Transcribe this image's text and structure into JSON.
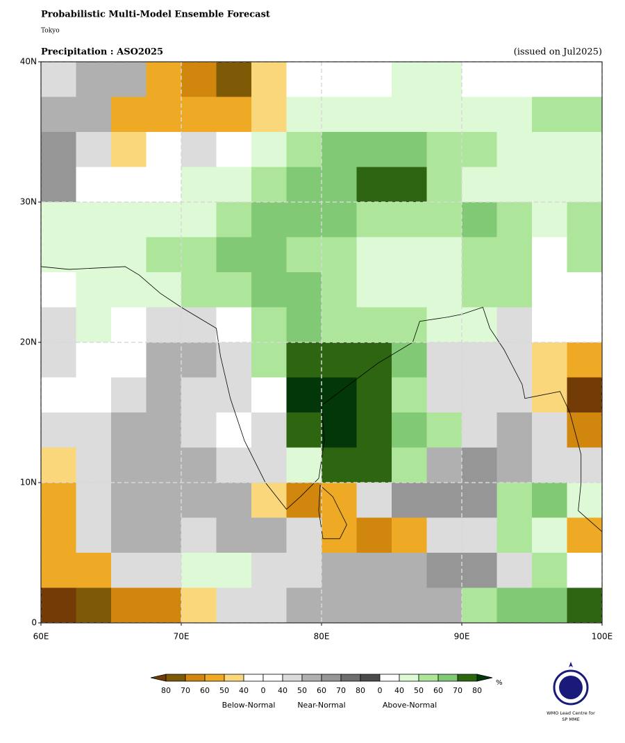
{
  "title": "Probabilistic Multi-Model Ensemble Forecast",
  "subtitle": "Tokyo",
  "logo": [
    "WMO Lead Centre for",
    "SP MME"
  ],
  "map": {
    "variable": "Precipitation : ASO2025",
    "issued": "(issued on Jul2025)",
    "xlim": [
      60,
      100
    ],
    "ylim": [
      0,
      40
    ],
    "xticks": [
      {
        "value": 60,
        "label": "60E"
      },
      {
        "value": 70,
        "label": "70E"
      },
      {
        "value": 80,
        "label": "80E"
      },
      {
        "value": 90,
        "label": "90E"
      },
      {
        "value": 100,
        "label": "100E"
      }
    ],
    "yticks": [
      0,
      {
        "value": 10,
        "label": "10N"
      },
      {
        "value": 20,
        "label": "20N"
      },
      {
        "value": 30,
        "label": "30N"
      },
      {
        "value": 40,
        "label": "40N"
      }
    ],
    "grid": true,
    "cells": [
      [
        "#dcdcdc",
        "#b0b0b0",
        "#b0b0b0",
        "#eeaa25",
        "#d1870d",
        "#7f5a06",
        "#fad77a",
        "#ffffff",
        "#ffffff",
        "#ffffff",
        "#ddf9d5",
        "#ddf9d5",
        "#ffffff",
        "#ffffff",
        "#ffffff",
        "#ffffff"
      ],
      [
        "#b0b0b0",
        "#b0b0b0",
        "#eeaa25",
        "#eeaa25",
        "#eeaa25",
        "#eeaa25",
        "#fad77a",
        "#ddf9d5",
        "#ddf9d5",
        "#ddf9d5",
        "#ddf9d5",
        "#ddf9d5",
        "#ddf9d5",
        "#ddf9d5",
        "#ade69a",
        "#ade69a"
      ],
      [
        "#969696",
        "#dcdcdc",
        "#fad77a",
        "#ffffff",
        "#dcdcdc",
        "#ffffff",
        "#ddf9d5",
        "#ade69a",
        "#82c975",
        "#82c975",
        "#82c975",
        "#ade69a",
        "#ade69a",
        "#ddf9d5",
        "#ddf9d5",
        "#ddf9d5"
      ],
      [
        "#969696",
        "#ffffff",
        "#ffffff",
        "#ffffff",
        "#ddf9d5",
        "#ddf9d5",
        "#ade69a",
        "#82c975",
        "#82c975",
        "#2e6510",
        "#2e6510",
        "#ade69a",
        "#ddf9d5",
        "#ddf9d5",
        "#ddf9d5",
        "#ddf9d5"
      ],
      [
        "#ddf9d5",
        "#ddf9d5",
        "#ddf9d5",
        "#ddf9d5",
        "#ddf9d5",
        "#ade69a",
        "#82c975",
        "#82c975",
        "#82c975",
        "#ade69a",
        "#ade69a",
        "#ade69a",
        "#82c975",
        "#ade69a",
        "#ddf9d5",
        "#ade69a"
      ],
      [
        "#ddf9d5",
        "#ddf9d5",
        "#ddf9d5",
        "#ade69a",
        "#ade69a",
        "#82c975",
        "#82c975",
        "#ade69a",
        "#ade69a",
        "#ddf9d5",
        "#ddf9d5",
        "#ddf9d5",
        "#ade69a",
        "#ade69a",
        "#ffffff",
        "#ade69a"
      ],
      [
        "#ffffff",
        "#ddf9d5",
        "#ddf9d5",
        "#ddf9d5",
        "#ade69a",
        "#ade69a",
        "#82c975",
        "#82c975",
        "#ade69a",
        "#ddf9d5",
        "#ddf9d5",
        "#ddf9d5",
        "#ade69a",
        "#ade69a",
        "#ffffff",
        "#ffffff"
      ],
      [
        "#dcdcdc",
        "#ddf9d5",
        "#ffffff",
        "#dcdcdc",
        "#dcdcdc",
        "#ffffff",
        "#ade69a",
        "#82c975",
        "#ade69a",
        "#ade69a",
        "#ade69a",
        "#ddf9d5",
        "#ddf9d5",
        "#dcdcdc",
        "#ffffff",
        "#ffffff"
      ],
      [
        "#dcdcdc",
        "#ffffff",
        "#ffffff",
        "#b0b0b0",
        "#b0b0b0",
        "#dcdcdc",
        "#ade69a",
        "#2e6510",
        "#2e6510",
        "#2e6510",
        "#82c975",
        "#dcdcdc",
        "#dcdcdc",
        "#dcdcdc",
        "#fad77a",
        "#eeaa25"
      ],
      [
        "#ffffff",
        "#ffffff",
        "#dcdcdc",
        "#b0b0b0",
        "#dcdcdc",
        "#dcdcdc",
        "#ffffff",
        "#033608",
        "#033608",
        "#2e6510",
        "#ade69a",
        "#dcdcdc",
        "#dcdcdc",
        "#dcdcdc",
        "#fad77a",
        "#733b06"
      ],
      [
        "#dcdcdc",
        "#dcdcdc",
        "#b0b0b0",
        "#b0b0b0",
        "#dcdcdc",
        "#ffffff",
        "#dcdcdc",
        "#2e6510",
        "#033608",
        "#2e6510",
        "#82c975",
        "#ade69a",
        "#dcdcdc",
        "#b0b0b0",
        "#dcdcdc",
        "#d1870d"
      ],
      [
        "#fad77a",
        "#dcdcdc",
        "#b0b0b0",
        "#b0b0b0",
        "#b0b0b0",
        "#dcdcdc",
        "#dcdcdc",
        "#ddf9d5",
        "#2e6510",
        "#2e6510",
        "#ade69a",
        "#b0b0b0",
        "#969696",
        "#b0b0b0",
        "#dcdcdc",
        "#dcdcdc"
      ],
      [
        "#eeaa25",
        "#dcdcdc",
        "#b0b0b0",
        "#b0b0b0",
        "#b0b0b0",
        "#b0b0b0",
        "#fad77a",
        "#d1870d",
        "#eeaa25",
        "#dcdcdc",
        "#969696",
        "#969696",
        "#969696",
        "#ade69a",
        "#82c975",
        "#ddf9d5"
      ],
      [
        "#eeaa25",
        "#dcdcdc",
        "#b0b0b0",
        "#b0b0b0",
        "#dcdcdc",
        "#b0b0b0",
        "#b0b0b0",
        "#dcdcdc",
        "#eeaa25",
        "#d1870d",
        "#eeaa25",
        "#dcdcdc",
        "#dcdcdc",
        "#ade69a",
        "#ddf9d5",
        "#eeaa25"
      ],
      [
        "#eeaa25",
        "#eeaa25",
        "#dcdcdc",
        "#dcdcdc",
        "#ddf9d5",
        "#ddf9d5",
        "#dcdcdc",
        "#dcdcdc",
        "#b0b0b0",
        "#b0b0b0",
        "#b0b0b0",
        "#969696",
        "#969696",
        "#dcdcdc",
        "#ade69a",
        "#ffffff"
      ],
      [
        "#733b06",
        "#7f5a06",
        "#d1870d",
        "#d1870d",
        "#fad77a",
        "#dcdcdc",
        "#dcdcdc",
        "#b0b0b0",
        "#b0b0b0",
        "#b0b0b0",
        "#b0b0b0",
        "#b0b0b0",
        "#ade69a",
        "#82c975",
        "#82c975",
        "#2e6510"
      ]
    ]
  },
  "legend": {
    "colors": [
      "#733b06",
      "#7f5a06",
      "#d1870d",
      "#eeaa25",
      "#fad77a",
      "#ffffff",
      "#ffffff",
      "#dcdcdc",
      "#b0b0b0",
      "#969696",
      "#6e6e6e",
      "#4b4b4b",
      "#ffffff",
      "#ddf9d5",
      "#ade69a",
      "#82c975",
      "#2e6510",
      "#033608"
    ],
    "labels": [
      80,
      70,
      60,
      50,
      40,
      0,
      40,
      50,
      60,
      70,
      80,
      0,
      40,
      50,
      60,
      70,
      80
    ],
    "unit": "%",
    "groups": [
      "Below-Normal",
      "Near-Normal",
      "Above-Normal"
    ]
  }
}
